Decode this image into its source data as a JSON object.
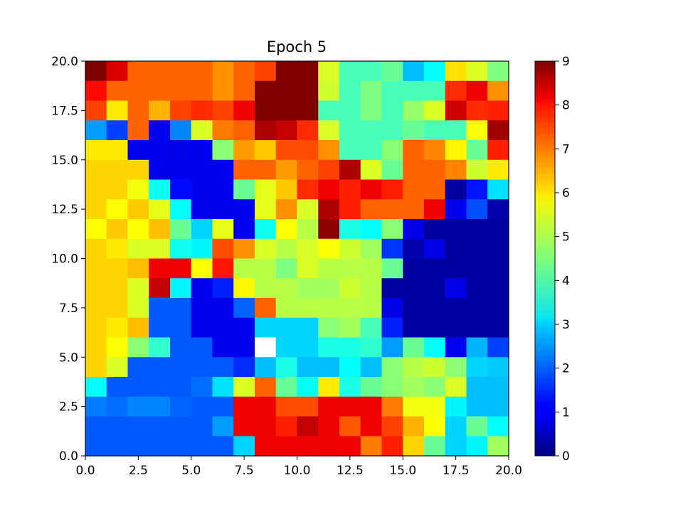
{
  "chart_data": {
    "type": "heatmap",
    "title": "Epoch 5",
    "xlabel": "",
    "ylabel": "",
    "xlim": [
      0,
      20
    ],
    "ylim": [
      0,
      20
    ],
    "x_ticks": [
      "0.0",
      "2.5",
      "5.0",
      "7.5",
      "10.0",
      "12.5",
      "15.0",
      "17.5",
      "20.0"
    ],
    "y_ticks": [
      "0.0",
      "2.5",
      "5.0",
      "7.5",
      "10.0",
      "12.5",
      "15.0",
      "17.5",
      "20.0"
    ],
    "colormap": "jet",
    "colorbar": {
      "range": [
        0,
        9
      ],
      "ticks": [
        "0",
        "1",
        "2",
        "3",
        "4",
        "5",
        "6",
        "7",
        "8",
        "9"
      ]
    },
    "grid": false,
    "rows_top_to_bottom": [
      [
        9,
        8.2,
        7,
        7,
        7,
        7,
        6.6,
        7,
        7.3,
        9,
        9,
        5.3,
        4,
        4,
        4.3,
        2.8,
        3.4,
        5.9,
        5.3,
        4.5
      ],
      [
        7.8,
        7,
        7,
        7,
        7,
        7,
        6.6,
        7,
        9,
        9,
        9,
        5.2,
        4,
        4.5,
        4,
        4,
        4,
        7.5,
        8,
        6.6
      ],
      [
        7.3,
        5.8,
        7,
        6.3,
        7.3,
        7.5,
        7.3,
        8,
        9,
        9,
        9,
        4,
        4,
        4.5,
        4,
        4.7,
        5.3,
        8.3,
        7.5,
        7.6
      ],
      [
        2.5,
        1.7,
        7,
        1,
        2.3,
        5.3,
        6.8,
        7,
        8.6,
        8.4,
        7.5,
        5.3,
        4,
        4,
        4,
        4.3,
        4,
        4,
        5.6,
        8.7
      ],
      [
        5.8,
        5.8,
        1,
        1,
        0.9,
        1,
        4.6,
        6.5,
        6.1,
        7.2,
        7.2,
        6.6,
        4,
        4,
        4.6,
        7,
        6.7,
        5.7,
        4.3,
        7.6
      ],
      [
        6,
        6,
        6,
        1,
        1,
        1,
        1,
        7,
        7,
        6.5,
        7,
        7.3,
        8.6,
        5.3,
        4.3,
        7,
        7,
        6.7,
        5.2,
        5.8
      ],
      [
        6,
        6,
        5.5,
        3.5,
        1.2,
        1,
        1,
        4.3,
        5.4,
        6.1,
        7.5,
        8,
        7.6,
        8,
        7.6,
        7,
        7,
        0.3,
        1.3,
        3.1
      ],
      [
        6,
        5.6,
        6.1,
        5.4,
        3.4,
        1,
        1,
        1,
        5.4,
        6.6,
        5.3,
        8.6,
        7.6,
        7,
        7,
        7,
        8,
        1,
        1.8,
        0.4
      ],
      [
        5.6,
        6.1,
        5.6,
        6.2,
        4.3,
        3,
        5.4,
        1,
        3.5,
        5.6,
        5,
        8.9,
        3.6,
        3.4,
        4.6,
        0.9,
        0.3,
        0.3,
        0.3,
        0.3
      ],
      [
        6,
        5.8,
        5.3,
        5.3,
        3.5,
        3.3,
        7.2,
        6.6,
        5.3,
        5,
        5.3,
        5.6,
        5.2,
        4.8,
        1.6,
        0.4,
        0.9,
        0.3,
        0.3,
        0.3
      ],
      [
        6,
        6,
        6.2,
        8,
        8,
        5.6,
        7.7,
        5,
        5,
        4.5,
        5.3,
        5,
        5,
        5,
        4.3,
        0.3,
        0.3,
        0.3,
        0.3,
        0.3
      ],
      [
        6,
        6,
        5.3,
        8.4,
        3.3,
        1,
        1.4,
        5.7,
        5,
        5,
        4.8,
        4.8,
        5.2,
        5,
        0.3,
        0.3,
        0.3,
        0.9,
        0.3,
        0.3
      ],
      [
        6,
        6,
        5.3,
        1.9,
        1.9,
        1,
        1,
        2,
        7,
        5,
        5,
        5,
        5,
        5,
        0.9,
        0.3,
        0.3,
        0.3,
        0.3,
        0.3
      ],
      [
        6,
        5.8,
        6.2,
        1.9,
        1.9,
        1,
        1,
        1,
        3,
        3,
        3,
        4.6,
        4.8,
        4,
        1.4,
        0.3,
        0.3,
        0.3,
        0.3,
        0.3
      ],
      [
        6,
        5.6,
        4.6,
        3.8,
        1.9,
        1.9,
        1,
        1,
        null,
        3,
        3,
        3.6,
        3.6,
        3.8,
        2.5,
        4.3,
        3.4,
        1,
        2.7,
        1.7
      ],
      [
        6,
        5.3,
        1.9,
        1.9,
        1.9,
        1.9,
        1.9,
        1.5,
        2.8,
        3.6,
        2.8,
        2.8,
        3.4,
        2.8,
        4.6,
        5,
        5.2,
        4.6,
        3,
        2.9
      ],
      [
        3.4,
        1.9,
        1.9,
        1.9,
        1.9,
        2.1,
        3.1,
        5.3,
        7,
        4.3,
        3.4,
        5.8,
        3.6,
        4.3,
        4.6,
        4.8,
        4.6,
        5.3,
        2.8,
        2.8
      ],
      [
        2.2,
        2.1,
        2.3,
        2.3,
        2,
        1.9,
        1.9,
        8,
        8,
        7.2,
        7.2,
        8,
        8,
        8,
        6.8,
        5.5,
        5.5,
        3.3,
        2.8,
        2.8
      ],
      [
        1.9,
        1.9,
        1.9,
        1.9,
        1.9,
        1.9,
        2.5,
        8,
        8,
        7.6,
        8.4,
        8,
        7.1,
        8,
        7.3,
        6.3,
        5.6,
        3,
        4.3,
        3.4
      ],
      [
        1.9,
        1.9,
        1.9,
        1.9,
        1.9,
        1.9,
        1.9,
        3,
        8,
        8,
        8,
        8,
        8,
        6.8,
        7.6,
        6,
        4.3,
        3,
        3.3,
        4.8
      ]
    ]
  }
}
